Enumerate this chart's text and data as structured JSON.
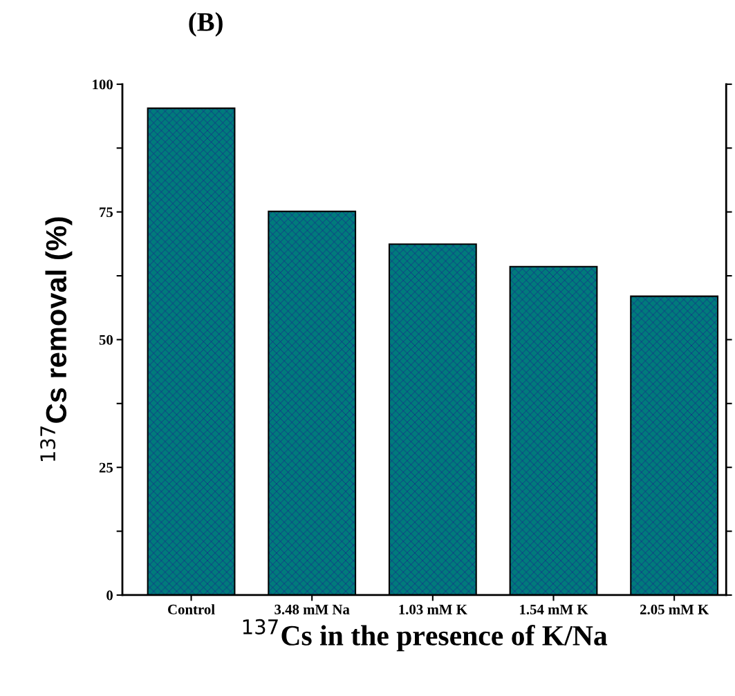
{
  "chart_data": {
    "type": "bar",
    "title": "(B)",
    "xlabel": "$^{137}$Cs in the presence of K/Na",
    "ylabel": "$^{137}$Cs removal (%)",
    "categories": [
      "Control",
      "3.48 mM Na",
      "1.03 mM K",
      "1.54 mM K",
      "2.05 mM K"
    ],
    "values": [
      95.3,
      75.1,
      68.7,
      64.3,
      58.5
    ],
    "color": "#007b7b",
    "ylim": [
      0,
      100
    ],
    "yticks": [
      0,
      {
        "value": 12.5,
        "label": null
      },
      25,
      {
        "value": 37.5,
        "label": null
      },
      50,
      {
        "value": 62.5,
        "label": null
      },
      75,
      {
        "value": 87.5,
        "label": null
      },
      100
    ],
    "grid": false,
    "legend": false
  }
}
